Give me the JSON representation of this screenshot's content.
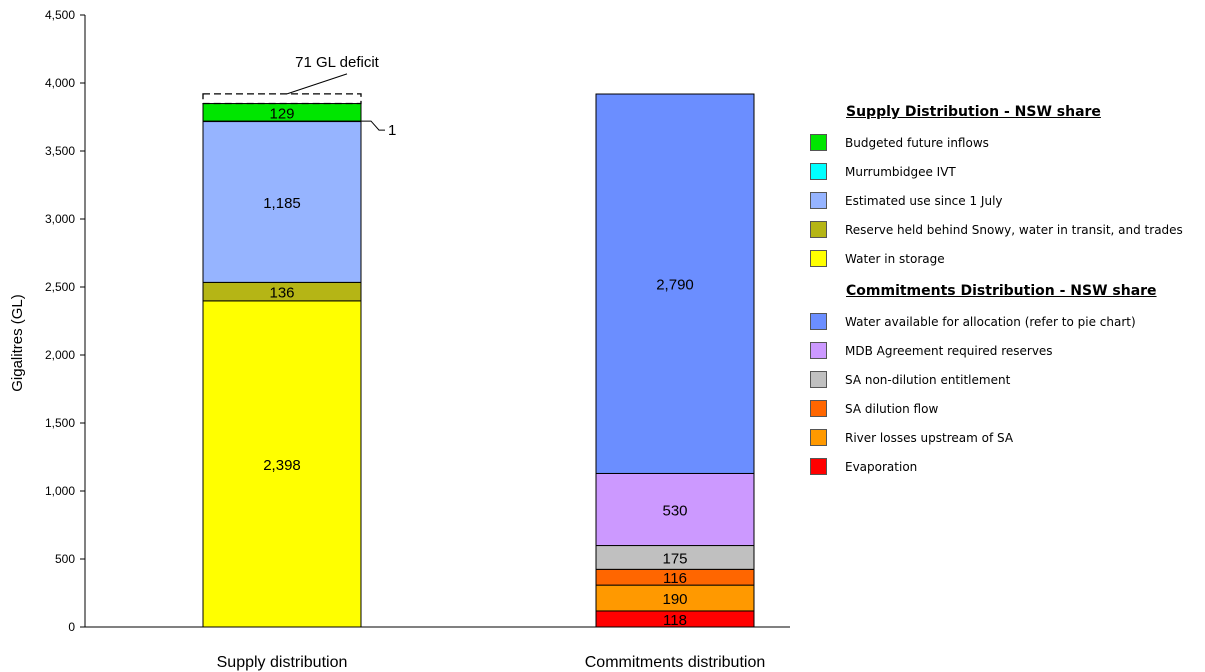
{
  "chart_data": {
    "type": "bar",
    "stacked": true,
    "ylabel": "Gigalitres (GL)",
    "ylim": [
      0,
      4500
    ],
    "yticks": [
      0,
      500,
      1000,
      1500,
      2000,
      2500,
      3000,
      3500,
      4000,
      4500
    ],
    "ytick_labels": [
      "0",
      "500",
      "1,000",
      "1,500",
      "2,000",
      "2,500",
      "3,000",
      "3,500",
      "4,000",
      "4,500"
    ],
    "categories": [
      "Supply distribution",
      "Commitments distribution"
    ],
    "supply_series": [
      {
        "name": "Water in storage",
        "value": 2398,
        "label": "2,398",
        "color": "#FFFF00"
      },
      {
        "name": "Reserve held behind Snowy, water in transit, and trades",
        "value": 136,
        "label": "136",
        "color": "#B5B515"
      },
      {
        "name": "Estimated use since 1 July",
        "value": 1185,
        "label": "1,185",
        "color": "#96B4FF"
      },
      {
        "name": "Murrumbidgee IVT",
        "value": 1,
        "label": "1",
        "color": "#00FFFF"
      },
      {
        "name": "Budgeted future inflows",
        "value": 129,
        "label": "129",
        "color": "#00E600"
      }
    ],
    "commitment_series": [
      {
        "name": "Evaporation",
        "value": 118,
        "label": "118",
        "color": "#FF0000"
      },
      {
        "name": "River losses upstream of SA",
        "value": 190,
        "label": "190",
        "color": "#FF9900"
      },
      {
        "name": "SA dilution flow",
        "value": 116,
        "label": "116",
        "color": "#FF6600"
      },
      {
        "name": "SA non-dilution entitlement",
        "value": 175,
        "label": "175",
        "color": "#C0C0C0"
      },
      {
        "name": "MDB Agreement required reserves",
        "value": 530,
        "label": "530",
        "color": "#CC99FF"
      },
      {
        "name": "Water available for allocation (refer to pie chart)",
        "value": 2790,
        "label": "2,790",
        "color": "#6B8EFF"
      }
    ],
    "deficit": {
      "value": 71,
      "label": "71 GL deficit"
    }
  },
  "legend": {
    "supply_title": "Supply Distribution - NSW share",
    "supply_items": [
      {
        "label": "Budgeted future inflows",
        "color": "#00E600"
      },
      {
        "label": "Murrumbidgee IVT",
        "color": "#00FFFF"
      },
      {
        "label": "Estimated use since 1 July",
        "color": "#96B4FF"
      },
      {
        "label": "Reserve held behind Snowy, water in transit, and trades",
        "color": "#B5B515"
      },
      {
        "label": "Water in storage",
        "color": "#FFFF00"
      }
    ],
    "commit_title": "Commitments Distribution - NSW share",
    "commit_items": [
      {
        "label": "Water available for allocation (refer to pie chart)",
        "color": "#6B8EFF"
      },
      {
        "label": "MDB Agreement required reserves",
        "color": "#CC99FF"
      },
      {
        "label": "SA non-dilution entitlement",
        "color": "#C0C0C0"
      },
      {
        "label": "SA dilution flow",
        "color": "#FF6600"
      },
      {
        "label": "River losses upstream of SA",
        "color": "#FF9900"
      },
      {
        "label": "Evaporation",
        "color": "#FF0000"
      }
    ]
  }
}
